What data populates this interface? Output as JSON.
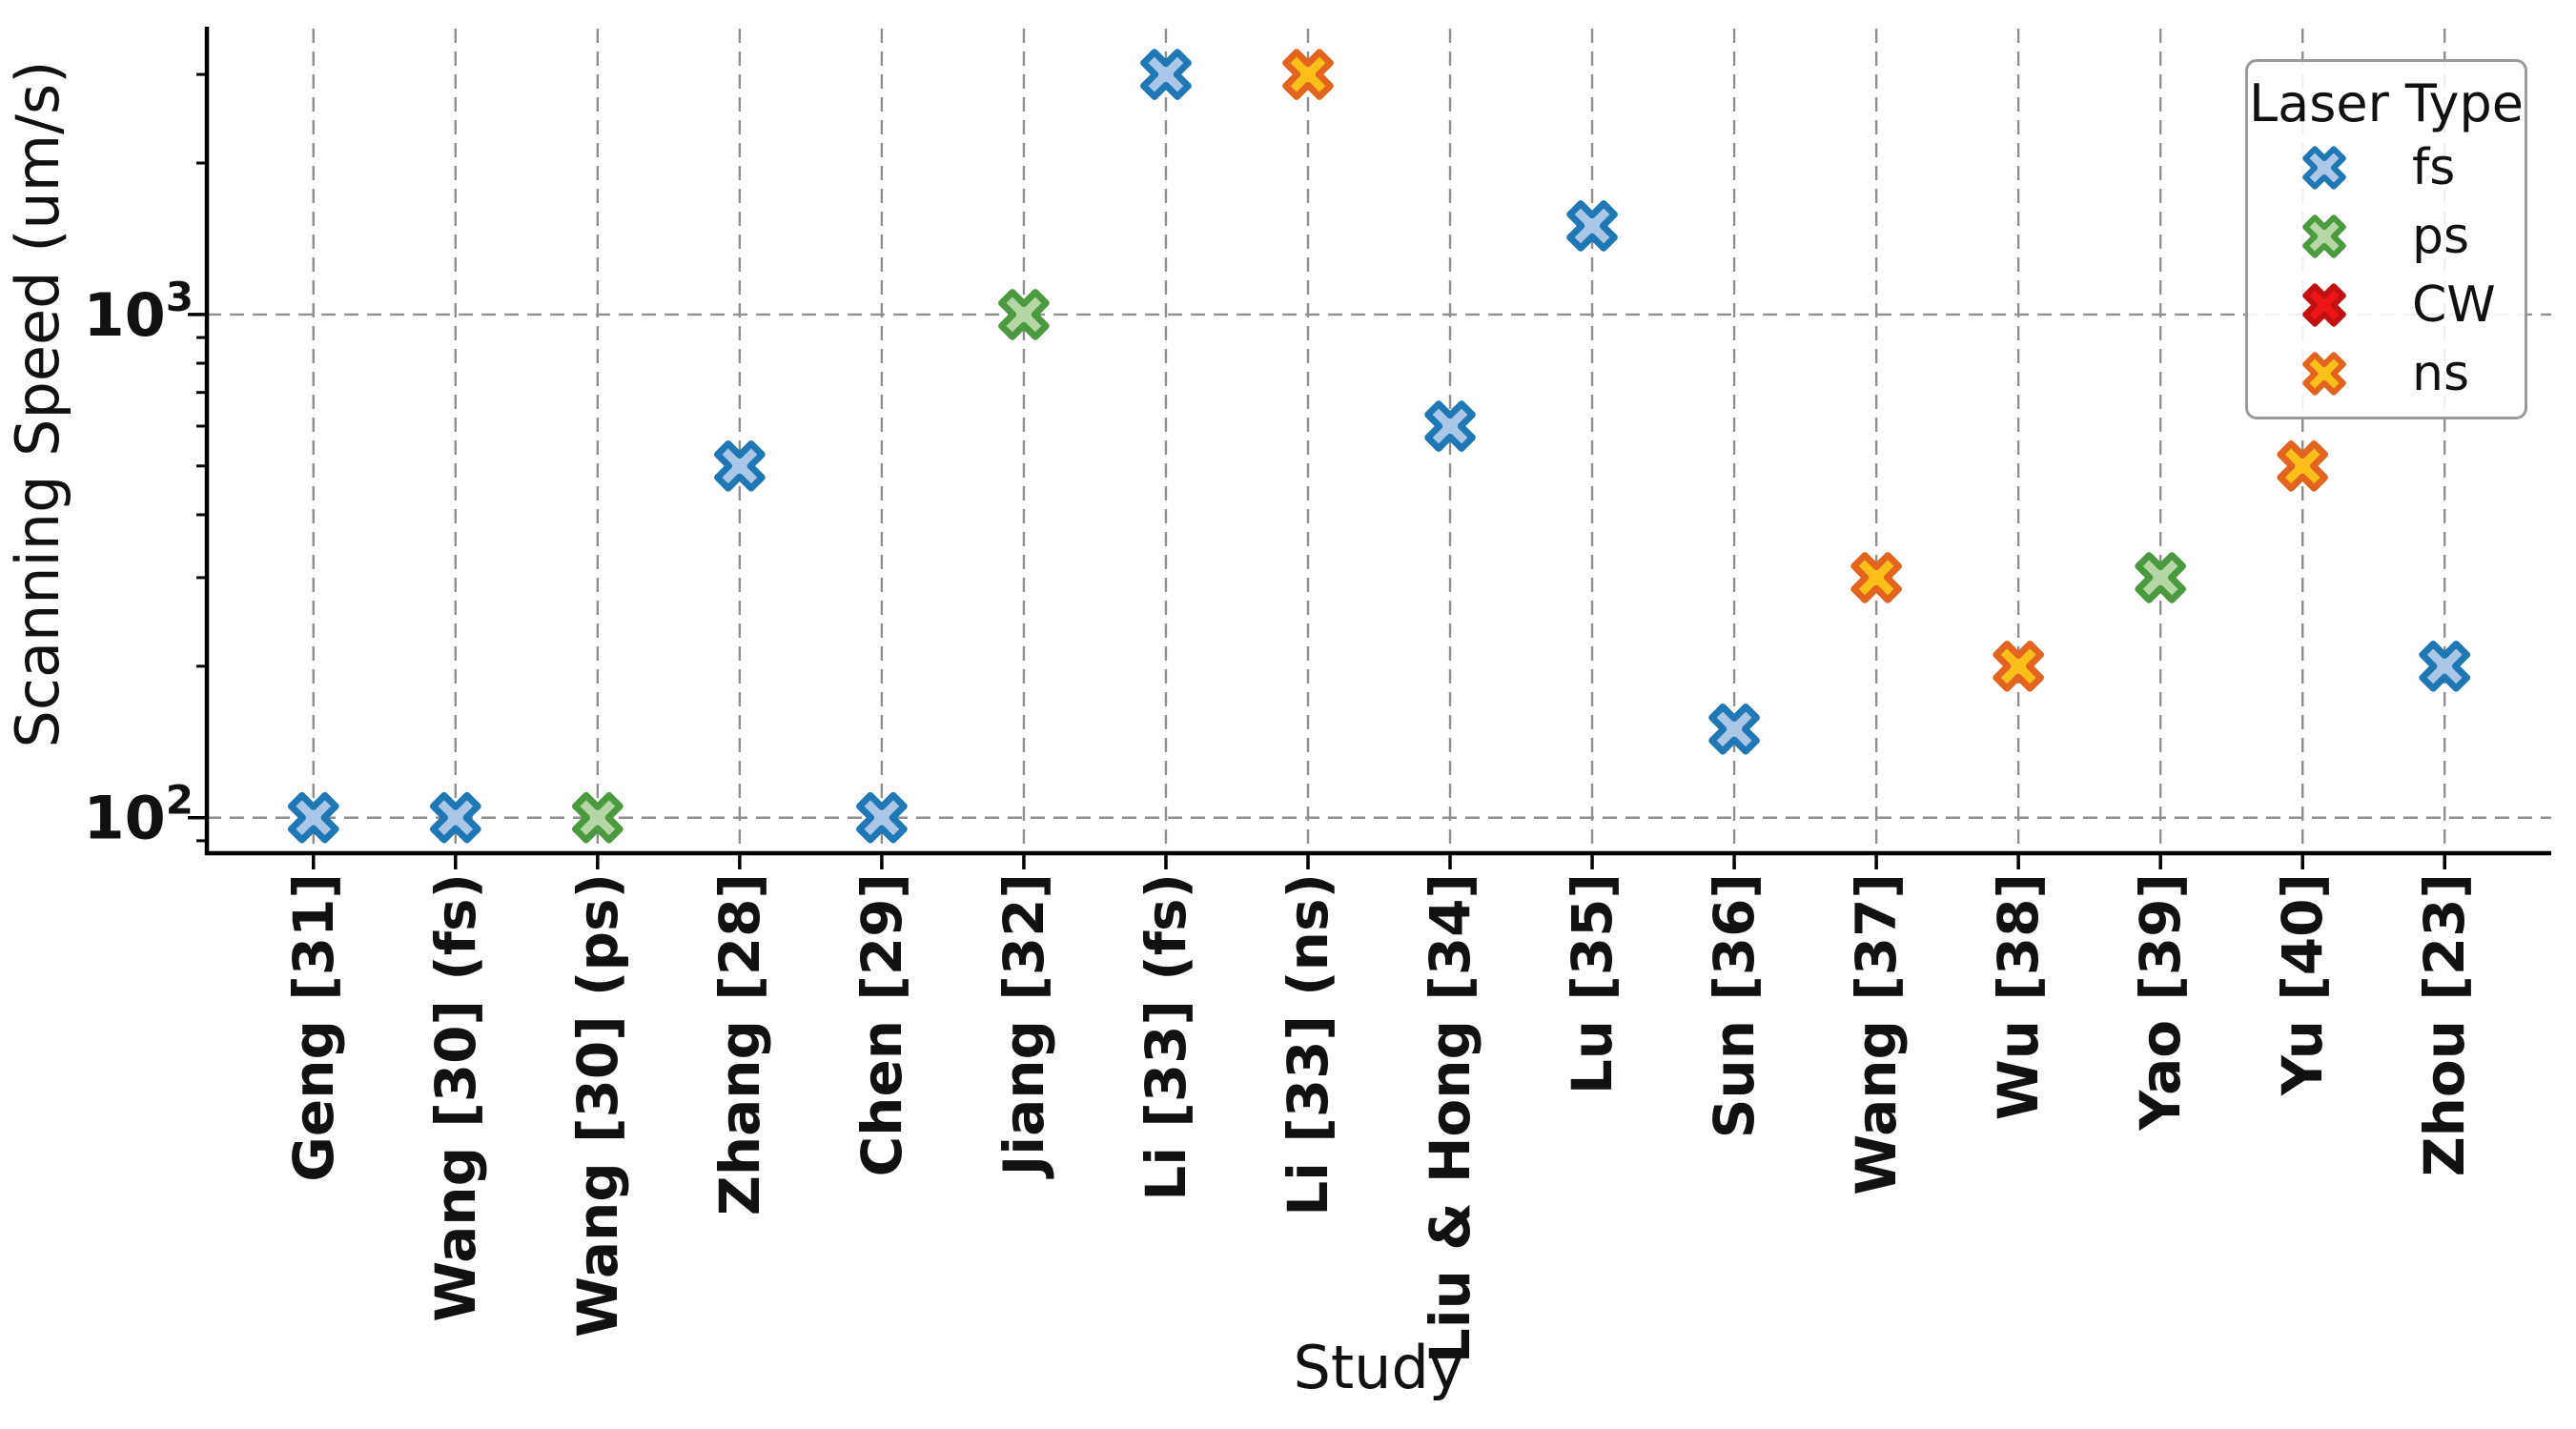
{
  "figure_type": "scatter-plot-screenshot",
  "legend": {
    "title": "Laser Type",
    "entries": [
      {
        "label": "fs",
        "edge": "#1f77b4",
        "fill": "#aac7e8"
      },
      {
        "label": "ps",
        "edge": "#4c9a3f",
        "fill": "#b5d6a5"
      },
      {
        "label": "CW",
        "edge": "#c01010",
        "fill": "#ee1515"
      },
      {
        "label": "ns",
        "edge": "#e2641e",
        "fill": "#fdc01a"
      }
    ]
  },
  "chart_data": {
    "type": "scatter",
    "title": "",
    "xlabel": "Study",
    "ylabel": "Scanning Speed (um/s)",
    "y_scale": "log",
    "ylim": [
      85,
      3700
    ],
    "y_major_ticks": [
      100,
      1000
    ],
    "y_tick_labels": [
      "10^2",
      "10^3"
    ],
    "grid": "dashed gray, vertical at every category and horizontal at decades",
    "legend_position": "upper right",
    "categories": [
      "Geng [31]",
      "Wang [30] (fs)",
      "Wang [30] (ps)",
      "Zhang [28]",
      "Chen [29]",
      "Jiang [32]",
      "Li [33] (fs)",
      "Li [33] (ns)",
      "Liu & Hong [34]",
      "Lu [35]",
      "Sun [36]",
      "Wang [37]",
      "Wu [38]",
      "Yao [39]",
      "Yu [40]",
      "Zhou [23]"
    ],
    "points": [
      {
        "study": "Geng [31]",
        "laser_type": "fs",
        "value": 100
      },
      {
        "study": "Wang [30] (fs)",
        "laser_type": "fs",
        "value": 100
      },
      {
        "study": "Wang [30] (ps)",
        "laser_type": "ps",
        "value": 100
      },
      {
        "study": "Zhang [28]",
        "laser_type": "fs",
        "value": 500
      },
      {
        "study": "Chen [29]",
        "laser_type": "fs",
        "value": 100
      },
      {
        "study": "Jiang [32]",
        "laser_type": "ps",
        "value": 1000
      },
      {
        "study": "Li [33] (fs)",
        "laser_type": "fs",
        "value": 3000
      },
      {
        "study": "Li [33] (ns)",
        "laser_type": "ns",
        "value": 3000
      },
      {
        "study": "Liu & Hong [34]",
        "laser_type": "fs",
        "value": 600
      },
      {
        "study": "Lu [35]",
        "laser_type": "fs",
        "value": 1500
      },
      {
        "study": "Sun [36]",
        "laser_type": "fs",
        "value": 150
      },
      {
        "study": "Wang [37]",
        "laser_type": "ns",
        "value": 300
      },
      {
        "study": "Wu [38]",
        "laser_type": "ns",
        "value": 200
      },
      {
        "study": "Yao [39]",
        "laser_type": "ps",
        "value": 300
      },
      {
        "study": "Yu [40]",
        "laser_type": "ns",
        "value": 500
      },
      {
        "study": "Zhou [23]",
        "laser_type": "fs",
        "value": 200
      }
    ]
  },
  "colors": {
    "gridline": "#8f8f8f",
    "spine": "#000000",
    "text": "#111111"
  }
}
